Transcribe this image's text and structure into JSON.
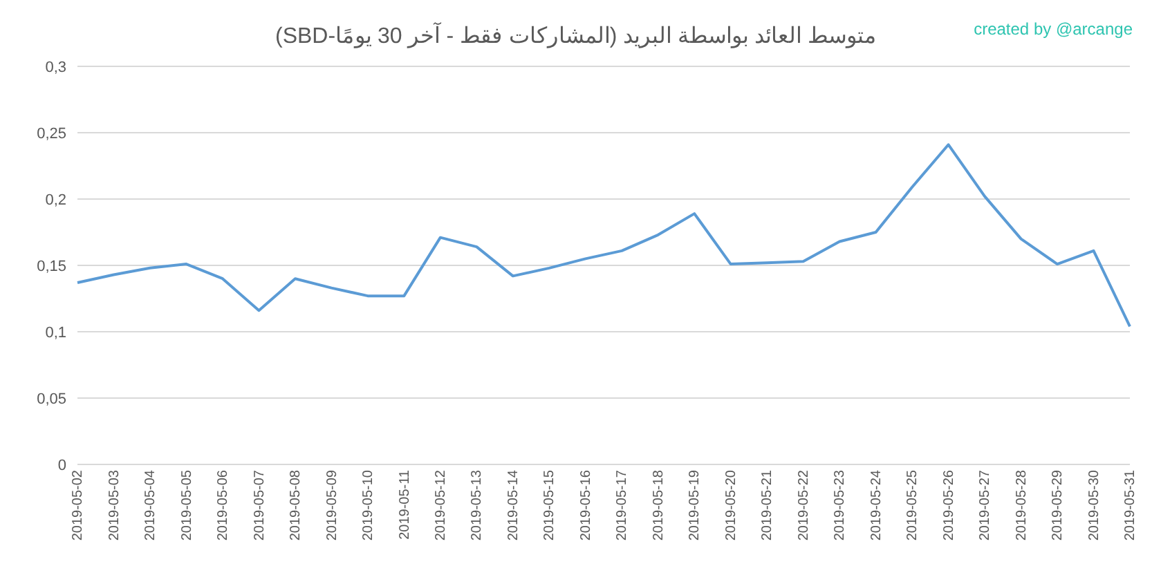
{
  "chart_data": {
    "type": "line",
    "title": "متوسط العائد بواسطة البريد (المشاركات فقط - آخر 30 يومًا-SBD)",
    "annotations": [
      "created by @arcange"
    ],
    "categories": [
      "2019-05-02",
      "2019-05-03",
      "2019-05-04",
      "2019-05-05",
      "2019-05-06",
      "2019-05-07",
      "2019-05-08",
      "2019-05-09",
      "2019-05-10",
      "2019-05-11",
      "2019-05-12",
      "2019-05-13",
      "2019-05-14",
      "2019-05-15",
      "2019-05-16",
      "2019-05-17",
      "2019-05-18",
      "2019-05-19",
      "2019-05-20",
      "2019-05-21",
      "2019-05-22",
      "2019-05-23",
      "2019-05-24",
      "2019-05-25",
      "2019-05-26",
      "2019-05-27",
      "2019-05-28",
      "2019-05-29",
      "2019-05-30",
      "2019-05-31"
    ],
    "series": [
      {
        "color": "#5b9bd5",
        "values": [
          0.137,
          0.143,
          0.148,
          0.151,
          0.14,
          0.116,
          0.14,
          0.133,
          0.127,
          0.127,
          0.171,
          0.164,
          0.142,
          0.148,
          0.155,
          0.161,
          0.173,
          0.189,
          0.151,
          0.152,
          0.153,
          0.168,
          0.175,
          0.209,
          0.241,
          0.202,
          0.17,
          0.151,
          0.161,
          0.104
        ]
      }
    ],
    "ylim": [
      0,
      0.3
    ],
    "yticks": [
      0,
      {
        "value": 0.05,
        "label": "0,05"
      },
      {
        "value": 0.1,
        "label": "0,1"
      },
      {
        "value": 0.15,
        "label": "0,15"
      },
      {
        "value": 0.2,
        "label": "0,2"
      },
      {
        "value": 0.25,
        "label": "0,25"
      },
      {
        "value": 0.3,
        "label": "0,3"
      }
    ],
    "grid": "y",
    "legend": false,
    "marker": "none",
    "line_style": "solid"
  }
}
